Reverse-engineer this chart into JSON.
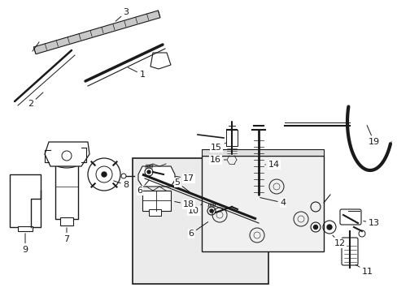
{
  "bg_color": "#ffffff",
  "line_color": "#1a1a1a",
  "box_color": "#e8e8e8",
  "fig_width": 4.89,
  "fig_height": 3.6,
  "dpi": 100,
  "fs": 8.0
}
